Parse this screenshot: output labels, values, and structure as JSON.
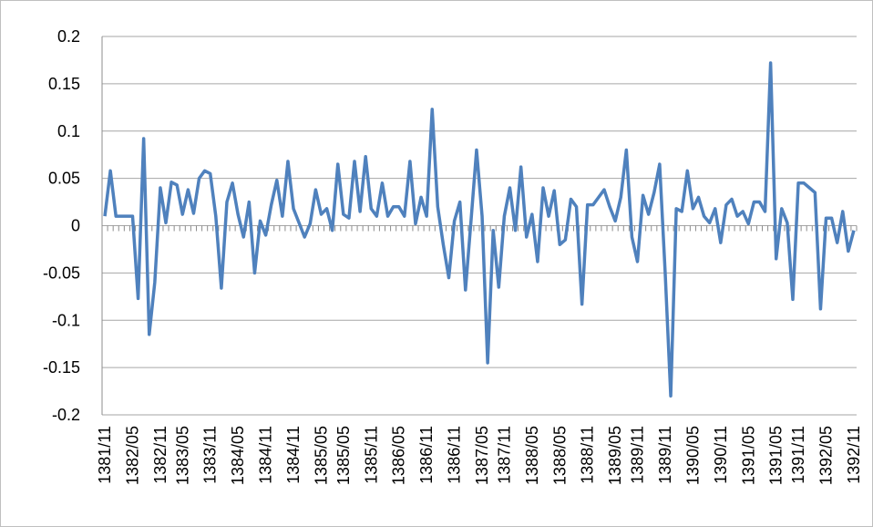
{
  "chart_data": {
    "type": "line",
    "categories": [
      "1381/11",
      null,
      null,
      null,
      null,
      "1382/05",
      null,
      null,
      null,
      null,
      "1382/11",
      null,
      null,
      null,
      "1383/05",
      null,
      null,
      null,
      null,
      "1383/11",
      null,
      null,
      null,
      null,
      "1384/05",
      null,
      null,
      null,
      null,
      "1384/11",
      null,
      null,
      null,
      null,
      "1384/11",
      null,
      null,
      null,
      null,
      "1385/05",
      null,
      null,
      null,
      "1385/05",
      null,
      null,
      null,
      null,
      "1385/11",
      null,
      null,
      null,
      null,
      "1386/05",
      null,
      null,
      null,
      null,
      "1386/11",
      null,
      null,
      null,
      null,
      "1386/11",
      null,
      null,
      null,
      null,
      "1387/05",
      null,
      null,
      null,
      "1387/11",
      null,
      null,
      null,
      null,
      "1388/05",
      null,
      null,
      null,
      null,
      "1388/05",
      null,
      null,
      null,
      null,
      "1388/11",
      null,
      null,
      null,
      null,
      "1389/05",
      null,
      null,
      null,
      "1389/11",
      null,
      null,
      null,
      null,
      "1389/11",
      null,
      null,
      null,
      null,
      "1390/05",
      null,
      null,
      null,
      null,
      "1390/11",
      null,
      null,
      null,
      null,
      "1391/05",
      null,
      null,
      null,
      null,
      "1391/05",
      null,
      null,
      null,
      "1391/11",
      null,
      null,
      null,
      null,
      "1392/05",
      null,
      null,
      null,
      null,
      "1392/11"
    ],
    "series": [
      {
        "color": "#4f81bd",
        "values": [
          0.01,
          0.058,
          0.01,
          0.01,
          0.01,
          0.01,
          -0.077,
          0.092,
          -0.115,
          -0.06,
          0.04,
          0.003,
          0.046,
          0.043,
          0.012,
          0.038,
          0.013,
          0.05,
          0.058,
          0.055,
          0.01,
          -0.066,
          0.025,
          0.045,
          0.012,
          -0.012,
          0.025,
          -0.05,
          0.005,
          -0.01,
          0.022,
          0.048,
          0.01,
          0.068,
          0.018,
          0.003,
          -0.012,
          0.002,
          0.038,
          0.012,
          0.018,
          -0.005,
          0.065,
          0.012,
          0.008,
          0.068,
          0.015,
          0.073,
          0.018,
          0.01,
          0.045,
          0.01,
          0.02,
          0.02,
          0.01,
          0.068,
          0.002,
          0.03,
          0.01,
          0.123,
          0.02,
          -0.02,
          -0.055,
          0.005,
          0.025,
          -0.068,
          0.005,
          0.08,
          0.01,
          -0.145,
          -0.005,
          -0.065,
          0.01,
          0.04,
          -0.005,
          0.062,
          -0.012,
          0.012,
          -0.038,
          0.04,
          0.01,
          0.037,
          -0.02,
          -0.015,
          0.028,
          0.02,
          -0.083,
          0.022,
          0.022,
          0.03,
          0.038,
          0.02,
          0.005,
          0.03,
          0.08,
          -0.012,
          -0.038,
          0.032,
          0.012,
          0.035,
          0.065,
          -0.05,
          -0.18,
          0.018,
          0.015,
          0.058,
          0.018,
          0.03,
          0.01,
          0.003,
          0.018,
          -0.018,
          0.022,
          0.028,
          0.01,
          0.015,
          0.002,
          0.025,
          0.025,
          0.015,
          0.172,
          -0.035,
          0.018,
          0.003,
          -0.078,
          0.045,
          0.045,
          0.04,
          0.035,
          -0.088,
          0.008,
          0.008,
          -0.018,
          0.015,
          -0.027,
          -0.005
        ]
      }
    ],
    "ylim": [
      -0.2,
      0.2
    ],
    "yticks": [
      -0.2,
      -0.15,
      -0.1,
      -0.05,
      0,
      0.05,
      0.1,
      0.15,
      0.2
    ],
    "grid": true
  }
}
